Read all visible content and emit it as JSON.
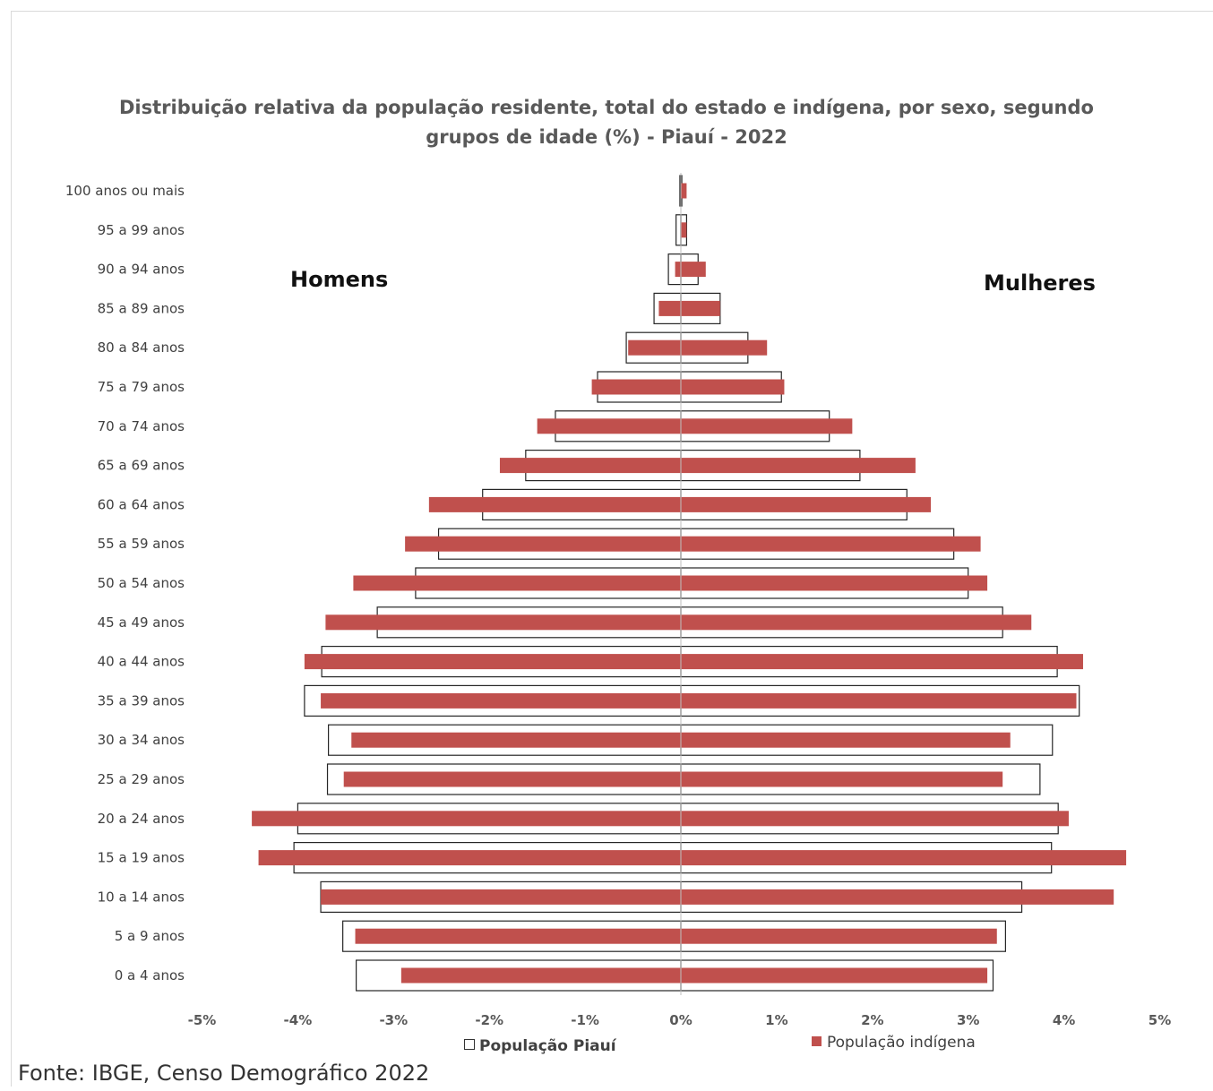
{
  "chart_data": {
    "type": "bar",
    "title_line1": "Distribuição relativa da população residente, total do estado e indígena, por sexo, segundo",
    "title_line2": "grupos de idade (%) - Piauí - 2022",
    "label_left": "Homens",
    "label_right": "Mulheres",
    "xlim": [
      -5,
      5
    ],
    "x_ticks": [
      "-5%",
      "-4%",
      "-3%",
      "-2%",
      "-1%",
      "0%",
      "1%",
      "2%",
      "3%",
      "4%",
      "5%"
    ],
    "categories": [
      "100 anos ou mais",
      "95 a 99 anos",
      "90 a 94 anos",
      "85 a 89 anos",
      "80 a 84 anos",
      "75 a 79 anos",
      "70 a 74 anos",
      "65 a 69 anos",
      "60 a 64 anos",
      "55 a 59 anos",
      "50 a 54 anos",
      "45 a 49 anos",
      "40 a 44 anos",
      "35 a 39 anos",
      "30 a 34 anos",
      "25 a 29 anos",
      "20 a 24 anos",
      "15 a 19 anos",
      "10 a 14 anos",
      "5 a 9 anos",
      "0 a 4 anos"
    ],
    "series": [
      {
        "name": "População Piauí",
        "style": "outline",
        "men": [
          -0.01,
          -0.05,
          -0.13,
          -0.28,
          -0.57,
          -0.87,
          -1.31,
          -1.62,
          -2.07,
          -2.53,
          -2.77,
          -3.17,
          -3.75,
          -3.93,
          -3.68,
          -3.69,
          -4.0,
          -4.04,
          -3.76,
          -3.53,
          -3.39
        ],
        "women": [
          0.01,
          0.06,
          0.18,
          0.41,
          0.7,
          1.05,
          1.55,
          1.87,
          2.36,
          2.85,
          3.0,
          3.36,
          3.93,
          4.16,
          3.88,
          3.75,
          3.94,
          3.87,
          3.56,
          3.39,
          3.26
        ]
      },
      {
        "name": "População indígena",
        "style": "fill",
        "color": "#c0504d",
        "men": [
          0.0,
          0.0,
          -0.06,
          -0.23,
          -0.55,
          -0.93,
          -1.5,
          -1.89,
          -2.63,
          -2.88,
          -3.42,
          -3.71,
          -3.93,
          -3.76,
          -3.44,
          -3.52,
          -4.48,
          -4.41,
          -3.76,
          -3.4,
          -2.92
        ],
        "women": [
          0.06,
          0.06,
          0.26,
          0.41,
          0.9,
          1.08,
          1.79,
          2.45,
          2.61,
          3.13,
          3.2,
          3.66,
          4.2,
          4.13,
          3.44,
          3.36,
          4.05,
          4.65,
          4.52,
          3.3,
          3.2
        ]
      }
    ],
    "legend_position": "bottom",
    "grid": false
  },
  "source": "Fonte: IBGE, Censo Demográfico 2022"
}
